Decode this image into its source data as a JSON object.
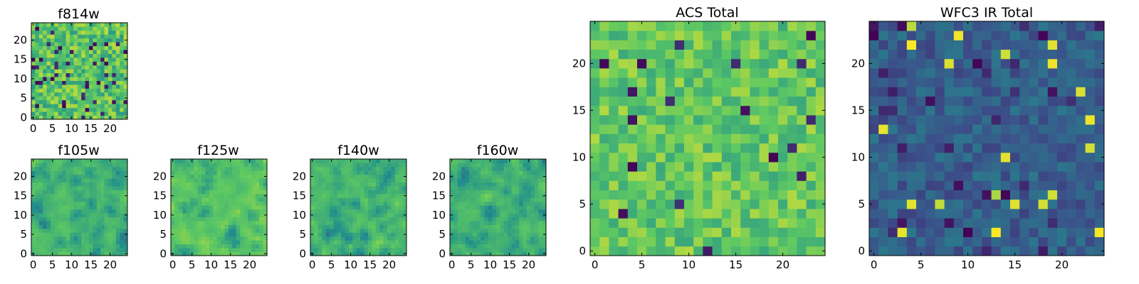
{
  "figure": {
    "colormap": "viridis",
    "colormap_stops": [
      "#440154",
      "#3b528b",
      "#21918c",
      "#5ec962",
      "#fde725"
    ],
    "panel_count": 7
  },
  "chart_data": [
    {
      "type": "heatmap",
      "title": "f814w",
      "grid_size": [
        25,
        25
      ],
      "xlim": [
        0,
        24
      ],
      "ylim": [
        0,
        24
      ],
      "xticks": [
        0,
        5,
        10,
        15,
        20
      ],
      "yticks": [
        0,
        5,
        10,
        15,
        20
      ],
      "xlabel": "",
      "ylabel": "",
      "values_description": "25x25 pixel intensity map, mostly mid-to-high values (green/yellow) with scattered low (dark purple) pixels",
      "seed": 814,
      "mean": 0.72,
      "spread": 0.18,
      "dark_fraction": 0.06,
      "smooth": 0
    },
    {
      "type": "heatmap",
      "title": "f105w",
      "grid_size": [
        25,
        25
      ],
      "xlim": [
        0,
        24
      ],
      "ylim": [
        0,
        24
      ],
      "xticks": [
        0,
        5,
        10,
        15,
        20
      ],
      "yticks": [
        0,
        5,
        10,
        15,
        20
      ],
      "xlabel": "",
      "ylabel": "",
      "values_description": "25x25 smoothed intensity map, green/yellow with dark blue patches",
      "seed": 105,
      "mean": 0.66,
      "spread": 0.2,
      "dark_fraction": 0.05,
      "smooth": 1
    },
    {
      "type": "heatmap",
      "title": "f125w",
      "grid_size": [
        25,
        25
      ],
      "xlim": [
        0,
        24
      ],
      "ylim": [
        0,
        24
      ],
      "xticks": [
        0,
        5,
        10,
        15,
        20
      ],
      "yticks": [
        0,
        5,
        10,
        15,
        20
      ],
      "xlabel": "",
      "ylabel": "",
      "values_description": "25x25 smoothed intensity map, predominantly yellow-green",
      "seed": 125,
      "mean": 0.74,
      "spread": 0.17,
      "dark_fraction": 0.04,
      "smooth": 1
    },
    {
      "type": "heatmap",
      "title": "f140w",
      "grid_size": [
        25,
        25
      ],
      "xlim": [
        0,
        24
      ],
      "ylim": [
        0,
        24
      ],
      "xticks": [
        0,
        5,
        10,
        15,
        20
      ],
      "yticks": [
        0,
        5,
        10,
        15,
        20
      ],
      "xlabel": "",
      "ylabel": "",
      "values_description": "25x25 smoothed intensity map, green with teal and dark patches",
      "seed": 140,
      "mean": 0.68,
      "spread": 0.2,
      "dark_fraction": 0.05,
      "smooth": 1
    },
    {
      "type": "heatmap",
      "title": "f160w",
      "grid_size": [
        25,
        25
      ],
      "xlim": [
        0,
        24
      ],
      "ylim": [
        0,
        24
      ],
      "xticks": [
        0,
        5,
        10,
        15,
        20
      ],
      "yticks": [
        0,
        5,
        10,
        15,
        20
      ],
      "xlabel": "",
      "ylabel": "",
      "values_description": "25x25 smoothed intensity map, green/yellow with teal and dark blue spots",
      "seed": 160,
      "mean": 0.66,
      "spread": 0.2,
      "dark_fraction": 0.05,
      "smooth": 1
    },
    {
      "type": "heatmap",
      "title": "ACS Total",
      "grid_size": [
        25,
        25
      ],
      "xlim": [
        0,
        24
      ],
      "ylim": [
        0,
        24
      ],
      "xticks": [
        0,
        5,
        10,
        15,
        20
      ],
      "yticks": [
        0,
        5,
        10,
        15,
        20
      ],
      "xlabel": "",
      "ylabel": "",
      "values_description": "25x25 summed ACS intensity map, mostly green/yellow with a few dark purple pixels",
      "seed": 9001,
      "mean": 0.74,
      "spread": 0.14,
      "dark_fraction": 0.03,
      "smooth": 0
    },
    {
      "type": "heatmap",
      "title": "WFC3 IR Total",
      "grid_size": [
        25,
        25
      ],
      "xlim": [
        0,
        24
      ],
      "ylim": [
        0,
        24
      ],
      "xticks": [
        0,
        5,
        10,
        15,
        20
      ],
      "yticks": [
        0,
        5,
        10,
        15,
        20
      ],
      "xlabel": "",
      "ylabel": "",
      "values_description": "25x25 summed WFC3 IR intensity map, mostly dark blue/teal with a few bright yellow-green hot pixels",
      "seed": 3003,
      "mean": 0.3,
      "spread": 0.1,
      "dark_fraction": 0.05,
      "bright_fraction": 0.025,
      "smooth": 0
    }
  ]
}
